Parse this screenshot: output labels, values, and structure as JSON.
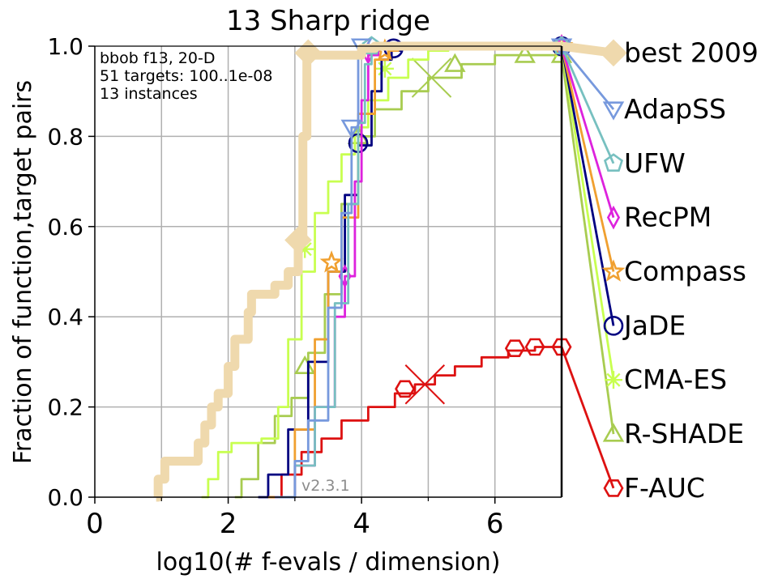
{
  "chart_data": {
    "type": "line",
    "title": "13 Sharp ridge",
    "xlabel": "log10(# f-evals / dimension)",
    "ylabel": "Fraction of function,target pairs",
    "xlim": [
      0,
      7
    ],
    "ylim": [
      0,
      1
    ],
    "xticks": [
      "0",
      "2",
      "4",
      "6"
    ],
    "yticks": [
      "0.0",
      "0.2",
      "0.4",
      "0.6",
      "0.8",
      "1.0"
    ],
    "grid": true,
    "legend_position": "right",
    "annotations": [
      "bbob f13, 20-D",
      "51 targets: 100..1e-08",
      "13 instances"
    ],
    "version": "v2.3.1",
    "series": [
      {
        "name": "best 2009",
        "color": "#efd9ad",
        "marker": "diamond",
        "points": [
          [
            0.92,
            0
          ],
          [
            0.95,
            0.04
          ],
          [
            1.05,
            0.08
          ],
          [
            1.45,
            0.08
          ],
          [
            1.55,
            0.12
          ],
          [
            1.65,
            0.16
          ],
          [
            1.75,
            0.2
          ],
          [
            1.85,
            0.23
          ],
          [
            2.0,
            0.29
          ],
          [
            2.1,
            0.35
          ],
          [
            2.3,
            0.41
          ],
          [
            2.35,
            0.45
          ],
          [
            2.6,
            0.45
          ],
          [
            2.7,
            0.47
          ],
          [
            2.85,
            0.47
          ],
          [
            2.9,
            0.5
          ],
          [
            3.05,
            0.57
          ],
          [
            3.12,
            0.8
          ],
          [
            3.18,
            0.98
          ],
          [
            4.0,
            0.995
          ],
          [
            4.2,
            1.0
          ],
          [
            7.0,
            1.0
          ]
        ],
        "markers": [
          [
            3.05,
            0.57
          ],
          [
            3.2,
            0.985
          ]
        ],
        "legend_end": 0.985
      },
      {
        "name": "AdapSS",
        "color": "#7799dd",
        "marker": "triangle-down",
        "points": [
          [
            2.7,
            0
          ],
          [
            3.0,
            0.08
          ],
          [
            3.2,
            0.17
          ],
          [
            3.5,
            0.42
          ],
          [
            3.7,
            0.63
          ],
          [
            3.85,
            0.82
          ],
          [
            3.95,
            0.98
          ],
          [
            4.0,
            1.0
          ],
          [
            7.0,
            1.0
          ]
        ],
        "markers": [
          [
            3.85,
            0.82
          ],
          [
            4.0,
            1.0
          ],
          [
            7.0,
            1.0
          ]
        ],
        "legend_end": 0.86
      },
      {
        "name": "UFW",
        "color": "#77c0c0",
        "marker": "pentagon",
        "points": [
          [
            2.75,
            0
          ],
          [
            3.0,
            0.07
          ],
          [
            3.3,
            0.2
          ],
          [
            3.6,
            0.43
          ],
          [
            3.8,
            0.65
          ],
          [
            3.95,
            0.83
          ],
          [
            4.05,
            0.96
          ],
          [
            4.15,
            1.0
          ],
          [
            7.0,
            1.0
          ]
        ],
        "markers": [
          [
            4.15,
            1.0
          ],
          [
            7.0,
            1.0
          ]
        ],
        "legend_end": 0.74
      },
      {
        "name": "RecPM",
        "color": "#dd22dd",
        "marker": "diamond-thin",
        "points": [
          [
            2.7,
            0
          ],
          [
            3.0,
            0.07
          ],
          [
            3.3,
            0.2
          ],
          [
            3.6,
            0.4
          ],
          [
            3.75,
            0.49
          ],
          [
            3.9,
            0.7
          ],
          [
            4.0,
            0.88
          ],
          [
            4.1,
            0.98
          ],
          [
            4.25,
            1.0
          ],
          [
            7.0,
            1.0
          ]
        ],
        "markers": [
          [
            3.75,
            0.49
          ],
          [
            4.1,
            0.985
          ],
          [
            7.0,
            1.0
          ]
        ],
        "legend_end": 0.62
      },
      {
        "name": "Compass",
        "color": "#f0a030",
        "marker": "star",
        "points": [
          [
            2.6,
            0
          ],
          [
            3.0,
            0.15
          ],
          [
            3.3,
            0.35
          ],
          [
            3.5,
            0.5
          ],
          [
            3.7,
            0.62
          ],
          [
            3.95,
            0.85
          ],
          [
            4.2,
            0.97
          ],
          [
            4.4,
            0.99
          ],
          [
            4.55,
            1.0
          ],
          [
            7.0,
            1.0
          ]
        ],
        "markers": [
          [
            3.55,
            0.52
          ],
          [
            4.35,
            0.99
          ],
          [
            7.0,
            1.0
          ]
        ],
        "legend_end": 0.5
      },
      {
        "name": "JaDE",
        "color": "#000080",
        "marker": "circle",
        "points": [
          [
            2.45,
            0
          ],
          [
            2.6,
            0.05
          ],
          [
            2.9,
            0.15
          ],
          [
            3.2,
            0.3
          ],
          [
            3.5,
            0.5
          ],
          [
            3.75,
            0.67
          ],
          [
            3.95,
            0.78
          ],
          [
            4.15,
            0.9
          ],
          [
            4.3,
            0.97
          ],
          [
            4.45,
            0.99
          ],
          [
            4.6,
            1.0
          ],
          [
            7.0,
            1.0
          ]
        ],
        "markers": [
          [
            3.95,
            0.785
          ],
          [
            4.48,
            0.995
          ],
          [
            7.0,
            1.0
          ]
        ],
        "legend_end": 0.38
      },
      {
        "name": "CMA-ES",
        "color": "#c8ff50",
        "marker": "thin-cross",
        "points": [
          [
            1.6,
            0
          ],
          [
            1.7,
            0.04
          ],
          [
            1.85,
            0.1
          ],
          [
            2.05,
            0.12
          ],
          [
            2.5,
            0.13
          ],
          [
            2.75,
            0.2
          ],
          [
            2.9,
            0.35
          ],
          [
            3.1,
            0.5
          ],
          [
            3.3,
            0.63
          ],
          [
            3.5,
            0.7
          ],
          [
            3.7,
            0.76
          ],
          [
            3.9,
            0.82
          ],
          [
            4.1,
            0.88
          ],
          [
            4.4,
            0.93
          ],
          [
            4.7,
            0.97
          ],
          [
            5.0,
            0.99
          ],
          [
            5.3,
            1.0
          ],
          [
            7.0,
            1.0
          ]
        ],
        "markers": [
          [
            3.15,
            0.55
          ],
          [
            4.35,
            0.95
          ],
          [
            7.0,
            0.99
          ]
        ],
        "legend_end": 0.26
      },
      {
        "name": "R-SHADE",
        "color": "#a8cc50",
        "marker": "triangle-up",
        "points": [
          [
            2.1,
            0
          ],
          [
            2.2,
            0.04
          ],
          [
            2.45,
            0.12
          ],
          [
            2.7,
            0.18
          ],
          [
            2.95,
            0.22
          ],
          [
            3.2,
            0.32
          ],
          [
            3.45,
            0.45
          ],
          [
            3.7,
            0.65
          ],
          [
            3.95,
            0.8
          ],
          [
            4.2,
            0.86
          ],
          [
            4.6,
            0.9
          ],
          [
            5.0,
            0.93
          ],
          [
            5.5,
            0.96
          ],
          [
            6.0,
            0.98
          ],
          [
            7.0,
            0.98
          ]
        ],
        "markers": [
          [
            3.15,
            0.29
          ],
          [
            3.95,
            0.8
          ],
          [
            5.4,
            0.96
          ],
          [
            6.45,
            0.98
          ],
          [
            7.0,
            0.98
          ]
        ],
        "big_cross": [
          5.05,
          0.93
        ],
        "legend_end": 0.14
      },
      {
        "name": "F-AUC",
        "color": "#dd1111",
        "marker": "hexagon",
        "points": [
          [
            2.6,
            0
          ],
          [
            2.8,
            0.05
          ],
          [
            3.1,
            0.1
          ],
          [
            3.4,
            0.13
          ],
          [
            3.7,
            0.17
          ],
          [
            4.1,
            0.2
          ],
          [
            4.5,
            0.23
          ],
          [
            4.8,
            0.25
          ],
          [
            5.1,
            0.27
          ],
          [
            5.4,
            0.29
          ],
          [
            5.8,
            0.31
          ],
          [
            6.2,
            0.325
          ],
          [
            6.6,
            0.333
          ],
          [
            7.0,
            0.333
          ]
        ],
        "markers": [
          [
            4.65,
            0.24
          ],
          [
            6.3,
            0.33
          ],
          [
            6.6,
            0.333
          ],
          [
            7.0,
            0.333
          ]
        ],
        "big_cross": [
          4.95,
          0.25
        ],
        "legend_end": 0.02
      }
    ]
  }
}
